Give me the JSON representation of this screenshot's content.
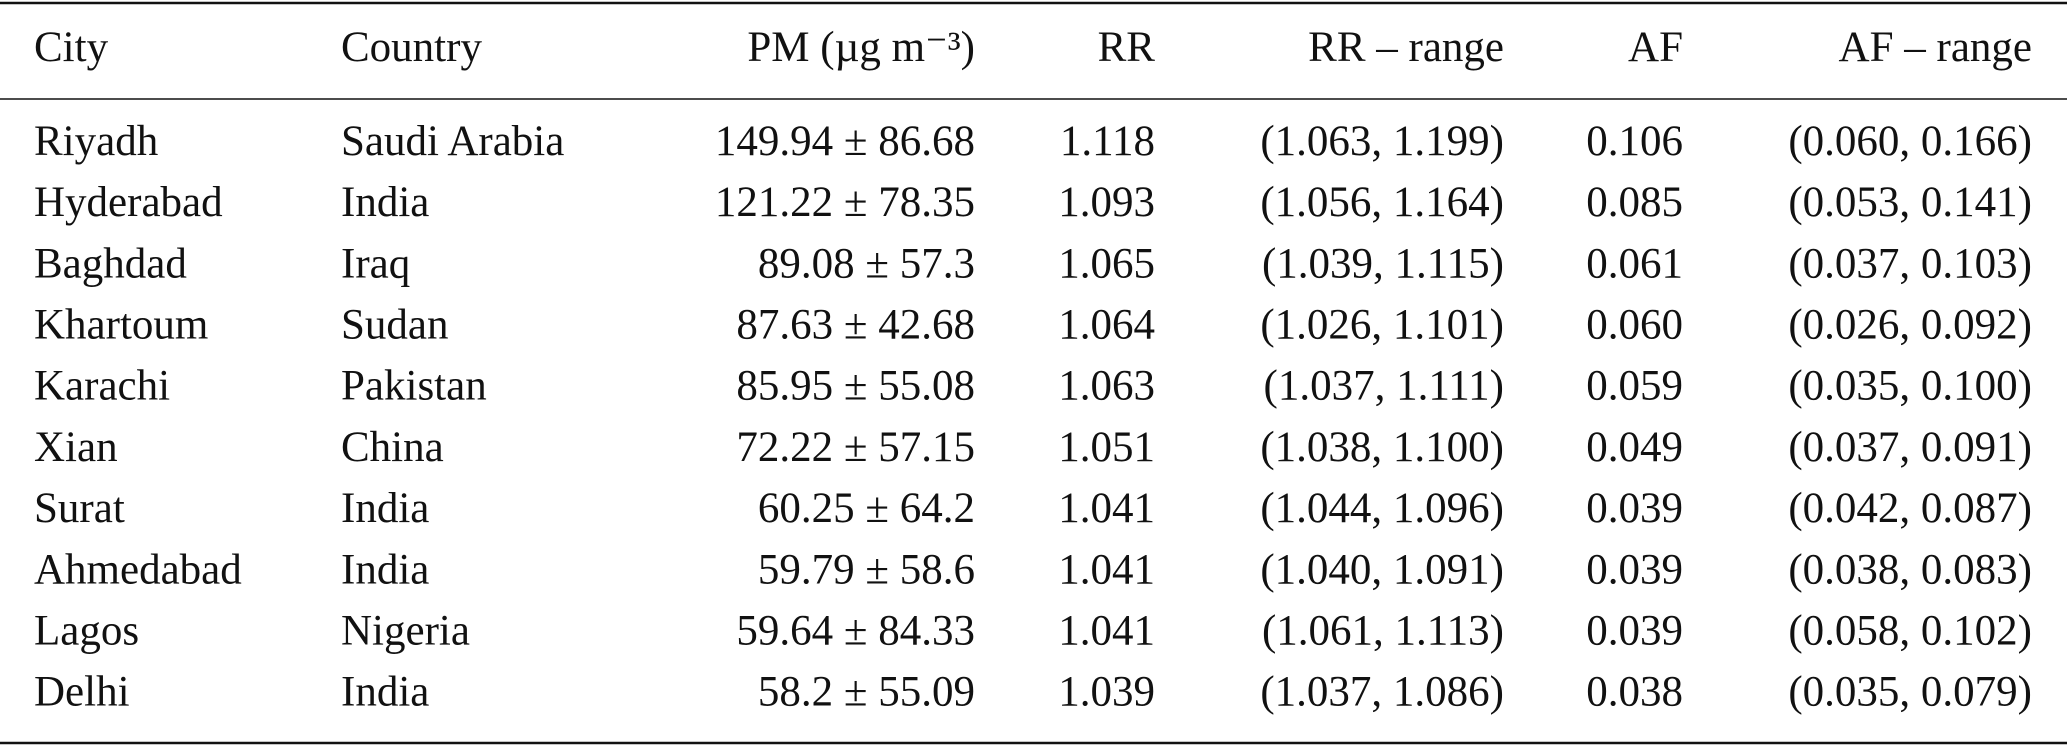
{
  "table": {
    "header": [
      "City",
      "Country",
      "PM (µg m⁻³)",
      "RR",
      "RR – range",
      "AF",
      "AF – range"
    ],
    "rows": [
      [
        "Riyadh",
        "Saudi Arabia",
        "149.94 ± 86.68",
        "1.118",
        "(1.063, 1.199)",
        "0.106",
        "(0.060, 0.166)"
      ],
      [
        "Hyderabad",
        "India",
        "121.22 ± 78.35",
        "1.093",
        "(1.056, 1.164)",
        "0.085",
        "(0.053, 0.141)"
      ],
      [
        "Baghdad",
        "Iraq",
        "89.08 ± 57.3",
        "1.065",
        "(1.039, 1.115)",
        "0.061",
        "(0.037, 0.103)"
      ],
      [
        "Khartoum",
        "Sudan",
        "87.63 ± 42.68",
        "1.064",
        "(1.026, 1.101)",
        "0.060",
        "(0.026, 0.092)"
      ],
      [
        "Karachi",
        "Pakistan",
        "85.95 ± 55.08",
        "1.063",
        "(1.037, 1.111)",
        "0.059",
        "(0.035, 0.100)"
      ],
      [
        "Xian",
        "China",
        "72.22 ± 57.15",
        "1.051",
        "(1.038, 1.100)",
        "0.049",
        "(0.037, 0.091)"
      ],
      [
        "Surat",
        "India",
        "60.25 ± 64.2",
        "1.041",
        "(1.044, 1.096)",
        "0.039",
        "(0.042, 0.087)"
      ],
      [
        "Ahmedabad",
        "India",
        "59.79 ± 58.6",
        "1.041",
        "(1.040, 1.091)",
        "0.039",
        "(0.038, 0.083)"
      ],
      [
        "Lagos",
        "Nigeria",
        "59.64 ± 84.33",
        "1.041",
        "(1.061, 1.113)",
        "0.039",
        "(0.058, 0.102)"
      ],
      [
        "Delhi",
        "India",
        "58.2 ± 55.09",
        "1.039",
        "(1.037, 1.086)",
        "0.038",
        "(0.035, 0.079)"
      ]
    ]
  }
}
